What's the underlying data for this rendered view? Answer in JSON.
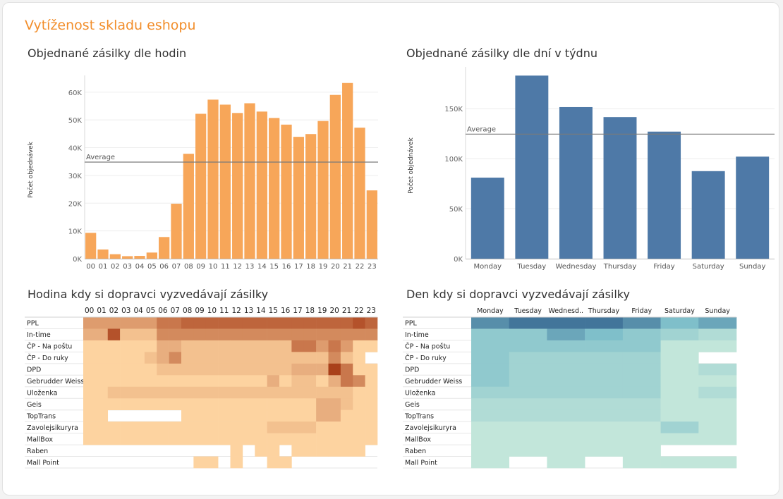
{
  "dashboard": {
    "title": "Vytíženost skladu eshopu"
  },
  "chart_data": [
    {
      "type": "bar",
      "title": "Objednané zásilky dle hodin",
      "ylabel": "Počet objednávek",
      "xlabel": "",
      "categories": [
        "00",
        "01",
        "02",
        "03",
        "04",
        "05",
        "06",
        "07",
        "08",
        "09",
        "10",
        "11",
        "12",
        "13",
        "14",
        "15",
        "16",
        "17",
        "18",
        "19",
        "20",
        "21",
        "22",
        "23"
      ],
      "values": [
        9300,
        3300,
        1600,
        900,
        1000,
        2200,
        7800,
        19800,
        37800,
        52200,
        57300,
        55500,
        52500,
        56000,
        53000,
        50700,
        48300,
        43900,
        44900,
        49600,
        59000,
        63300,
        47200,
        24600
      ],
      "yticks": [
        0,
        10000,
        20000,
        30000,
        40000,
        50000,
        60000
      ],
      "ytick_labels": [
        "0K",
        "10K",
        "20K",
        "30K",
        "40K",
        "50K",
        "60K"
      ],
      "ylim": [
        0,
        64000
      ],
      "reference_line": {
        "label": "Average",
        "value": 34800
      },
      "color": "#f7a659"
    },
    {
      "type": "bar",
      "title": "Objednané zásilky dle dní v týdnu",
      "ylabel": "Počet objednávek",
      "xlabel": "",
      "categories": [
        "Monday",
        "Tuesday",
        "Wednesday",
        "Thursday",
        "Friday",
        "Saturday",
        "Sunday"
      ],
      "values": [
        81000,
        183000,
        151500,
        141500,
        127000,
        87500,
        102000
      ],
      "yticks": [
        0,
        50000,
        100000,
        150000
      ],
      "ytick_labels": [
        "0K",
        "50K",
        "100K",
        "150K"
      ],
      "ylim": [
        0,
        186000
      ],
      "reference_line": {
        "label": "Average",
        "value": 124500
      },
      "color": "#4e79a7"
    },
    {
      "type": "heatmap",
      "title": "Hodina kdy si dopravci vyzvedávají zásilky",
      "columns": [
        "00",
        "01",
        "02",
        "03",
        "04",
        "05",
        "06",
        "07",
        "08",
        "09",
        "10",
        "11",
        "12",
        "13",
        "14",
        "15",
        "16",
        "17",
        "18",
        "19",
        "20",
        "21",
        "22",
        "23"
      ],
      "rows": [
        "PPL",
        "In-time",
        "ČP - Na poštu",
        "ČP - Do ruky",
        "DPD",
        "Gebrudder Weiss",
        "Uloženka",
        "Geis",
        "TopTrans",
        "Zavolejsikuryra",
        "MallBox",
        "Raben",
        "Mall Point"
      ],
      "values": [
        [
          4,
          4,
          4,
          4,
          4,
          4,
          6,
          6,
          7,
          7,
          7,
          7,
          7,
          7,
          7,
          7,
          7,
          7,
          7,
          7,
          7,
          7,
          8,
          7
        ],
        [
          3,
          3,
          8,
          2,
          2,
          2,
          5,
          5,
          5,
          5,
          5,
          5,
          5,
          5,
          5,
          5,
          5,
          5,
          5,
          5,
          5,
          5,
          5,
          5
        ],
        [
          1,
          1,
          1,
          1,
          1,
          1,
          3,
          3,
          2,
          2,
          2,
          2,
          2,
          2,
          2,
          2,
          2,
          6,
          6,
          4,
          6,
          4,
          1,
          1
        ],
        [
          1,
          1,
          1,
          1,
          1,
          2,
          3,
          5,
          2,
          2,
          2,
          2,
          2,
          2,
          2,
          2,
          2,
          2,
          2,
          2,
          5,
          2,
          1,
          0
        ],
        [
          1,
          1,
          1,
          1,
          1,
          1,
          2,
          2,
          2,
          2,
          2,
          2,
          2,
          2,
          2,
          2,
          2,
          3,
          3,
          3,
          9,
          6,
          1,
          1
        ],
        [
          1,
          1,
          1,
          1,
          1,
          1,
          1,
          1,
          1,
          1,
          1,
          1,
          1,
          1,
          1,
          3,
          1,
          2,
          2,
          1,
          3,
          6,
          5,
          1
        ],
        [
          1,
          1,
          2,
          2,
          2,
          2,
          2,
          2,
          2,
          2,
          2,
          2,
          2,
          2,
          2,
          2,
          2,
          2,
          2,
          2,
          2,
          2,
          1,
          1
        ],
        [
          1,
          1,
          1,
          1,
          1,
          1,
          1,
          1,
          1,
          1,
          1,
          1,
          1,
          1,
          1,
          1,
          1,
          1,
          1,
          3,
          3,
          2,
          1,
          1
        ],
        [
          1,
          1,
          0,
          0,
          0,
          0,
          0,
          0,
          1,
          1,
          1,
          1,
          1,
          1,
          1,
          1,
          1,
          1,
          1,
          3,
          3,
          1,
          1,
          1
        ],
        [
          1,
          1,
          1,
          1,
          1,
          1,
          1,
          1,
          1,
          1,
          1,
          1,
          1,
          1,
          1,
          2,
          2,
          2,
          2,
          1,
          1,
          1,
          1,
          1
        ],
        [
          1,
          1,
          1,
          1,
          1,
          1,
          1,
          1,
          1,
          1,
          1,
          1,
          1,
          1,
          1,
          1,
          1,
          1,
          1,
          1,
          1,
          1,
          1,
          1
        ],
        [
          0,
          0,
          0,
          0,
          0,
          0,
          0,
          0,
          0,
          0,
          0,
          0,
          1,
          0,
          1,
          1,
          0,
          1,
          1,
          1,
          1,
          1,
          1,
          0
        ],
        [
          0,
          0,
          0,
          0,
          0,
          0,
          0,
          0,
          0,
          1,
          1,
          0,
          1,
          0,
          0,
          1,
          1,
          0,
          0,
          0,
          0,
          0,
          0,
          0
        ]
      ],
      "scale": "0 = no data, 1–9 = light to dark",
      "color_low": "#fdd3a0",
      "color_high": "#a9401a"
    },
    {
      "type": "heatmap",
      "title": "Den kdy si dopravci vyzvedávají zásilky",
      "columns": [
        "Monday",
        "Tuesday",
        "Wednesd..",
        "Thursday",
        "Friday",
        "Saturday",
        "Sunday"
      ],
      "rows": [
        "PPL",
        "In-time",
        "ČP - Na poštu",
        "ČP - Do ruky",
        "DPD",
        "Gebrudder Weiss",
        "Uloženka",
        "Geis",
        "TopTrans",
        "Zavolejsikuryra",
        "MallBox",
        "Raben",
        "Mall Point"
      ],
      "values": [
        [
          7,
          8,
          8,
          8,
          7,
          5,
          6
        ],
        [
          4,
          4,
          6,
          5,
          4,
          3,
          2
        ],
        [
          4,
          4,
          4,
          4,
          4,
          1,
          1
        ],
        [
          4,
          3,
          3,
          3,
          3,
          1,
          0
        ],
        [
          4,
          3,
          3,
          3,
          3,
          1,
          2
        ],
        [
          4,
          3,
          3,
          3,
          3,
          1,
          1
        ],
        [
          3,
          3,
          3,
          3,
          3,
          1,
          2
        ],
        [
          2,
          2,
          2,
          2,
          2,
          1,
          1
        ],
        [
          2,
          2,
          2,
          2,
          2,
          1,
          1
        ],
        [
          1,
          1,
          1,
          1,
          1,
          3,
          1
        ],
        [
          1,
          1,
          1,
          1,
          1,
          1,
          1
        ],
        [
          1,
          1,
          1,
          1,
          1,
          0,
          0
        ],
        [
          1,
          0,
          1,
          0,
          1,
          1,
          1
        ]
      ],
      "scale": "0 = no data, 1–9 = light to dark",
      "color_low": "#c2e6da",
      "color_high": "#2e5c8a"
    }
  ]
}
